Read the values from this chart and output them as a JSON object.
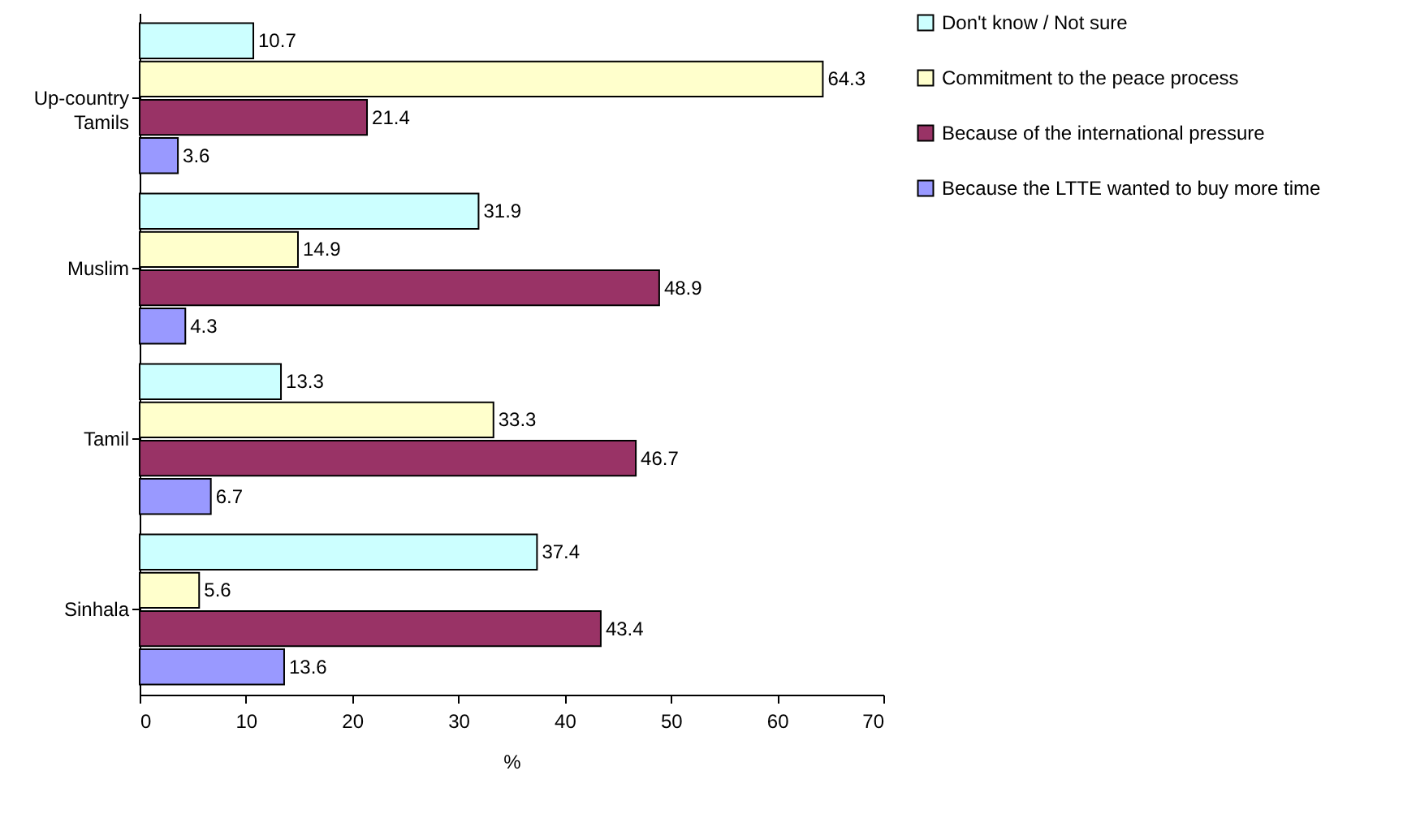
{
  "chart_data": {
    "type": "bar",
    "orientation": "horizontal",
    "xlabel": "%",
    "categories": [
      "Up-country Tamils",
      "Muslim",
      "Tamil",
      "Sinhala"
    ],
    "series": [
      {
        "name": "Don't know / Not sure",
        "color": "#ccffff",
        "values": [
          10.7,
          31.9,
          13.3,
          37.4
        ]
      },
      {
        "name": "Commitment to the peace process",
        "color": "#ffffcc",
        "values": [
          64.3,
          14.9,
          33.3,
          5.6
        ]
      },
      {
        "name": "Because of the international pressure",
        "color": "#993366",
        "values": [
          21.4,
          48.9,
          46.7,
          43.4
        ]
      },
      {
        "name": "Because the LTTE wanted to buy more time",
        "color": "#9999ff",
        "values": [
          3.6,
          4.3,
          6.7,
          13.6
        ]
      }
    ],
    "xlim": [
      0,
      70
    ],
    "xticks": [
      0,
      10,
      20,
      30,
      40,
      50,
      60,
      70
    ],
    "data_labels": true,
    "legend": "right",
    "grid": false
  }
}
